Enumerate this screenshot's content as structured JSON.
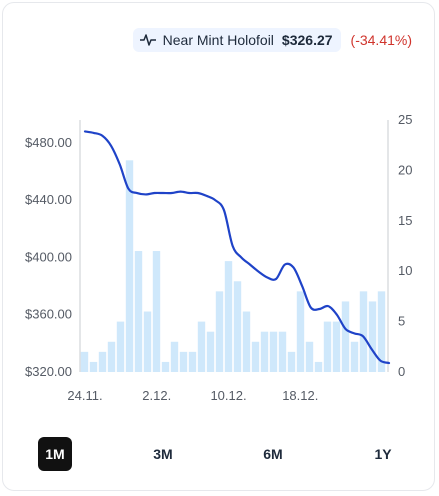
{
  "legend": {
    "name": "Near Mint Holofoil",
    "price": "$326.27",
    "change": "(-34.41%)"
  },
  "tabs": [
    {
      "label": "1M",
      "active": true
    },
    {
      "label": "3M",
      "active": false
    },
    {
      "label": "6M",
      "active": false
    },
    {
      "label": "1Y",
      "active": false
    }
  ],
  "colors": {
    "line": "#1f43c8",
    "bars": "#cfe8fb",
    "negative": "#d0342c"
  },
  "chart_data": {
    "type": "bar+line",
    "x_ticks": [
      "24.11.",
      "2.12.",
      "10.12.",
      "18.12."
    ],
    "y_left": {
      "ticks": [
        "$320.00",
        "$360.00",
        "$400.00",
        "$440.00",
        "$480.00"
      ],
      "range": [
        320,
        496
      ]
    },
    "y_right": {
      "ticks": [
        "0",
        "5",
        "10",
        "15",
        "20",
        "25"
      ],
      "range": [
        0,
        25
      ]
    },
    "grid": false,
    "volume_bars": [
      2,
      1,
      2,
      3,
      5,
      21,
      12,
      6,
      12,
      1,
      3,
      2,
      2,
      5,
      4,
      8,
      11,
      9,
      6,
      3,
      4,
      4,
      4,
      2,
      8,
      3,
      1,
      5,
      5,
      7,
      3,
      8,
      7,
      8
    ],
    "price_line": [
      488,
      487,
      485,
      478,
      465,
      448,
      445,
      444,
      445,
      445,
      445,
      446,
      445,
      445,
      443,
      440,
      433,
      408,
      400,
      395,
      390,
      386,
      385,
      395,
      393,
      380,
      365,
      364,
      366,
      360,
      350,
      347,
      345,
      336,
      328,
      326.27
    ]
  }
}
